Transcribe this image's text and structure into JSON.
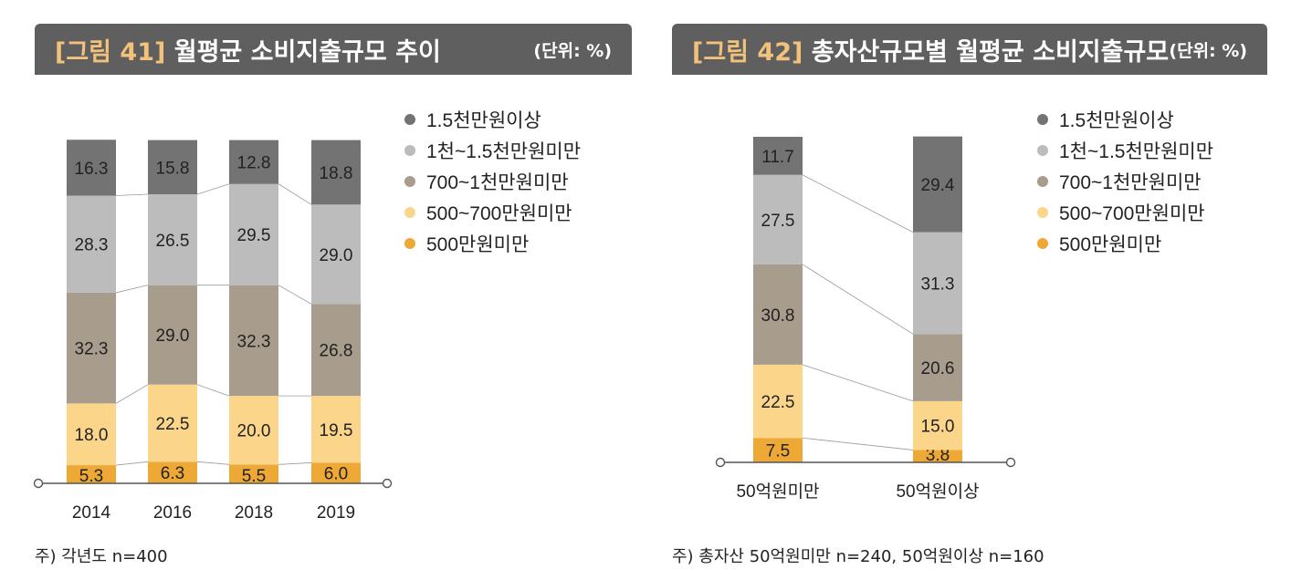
{
  "figure1": {
    "tag": "[그림 41]",
    "title": "월평균 소비지출규모 추이",
    "unit": "(단위: %)",
    "note": "주) 각년도 n=400"
  },
  "figure2": {
    "tag": "[그림 42]",
    "title": "총자산규모별 월평균 소비지출규모",
    "unit": "(단위: %)",
    "note": "주) 총자산 50억원미만 n=240, 50억원이상 n=160"
  },
  "chart_data": [
    {
      "type": "bar",
      "stacked": true,
      "title": "월평균 소비지출규모 추이",
      "categories": [
        "2014",
        "2016",
        "2018",
        "2019"
      ],
      "series": [
        {
          "name": "500만원미만",
          "color": "#eda836",
          "values": [
            5.3,
            6.3,
            5.5,
            6.0
          ]
        },
        {
          "name": "500~700만원미만",
          "color": "#fbd68a",
          "values": [
            18.0,
            22.5,
            20.0,
            19.5
          ]
        },
        {
          "name": "700~1천만원미만",
          "color": "#a89c8d",
          "values": [
            32.3,
            29.0,
            32.3,
            26.8
          ]
        },
        {
          "name": "1천~1.5천만원미만",
          "color": "#bcbcbc",
          "values": [
            28.3,
            26.5,
            29.5,
            29.0
          ]
        },
        {
          "name": "1.5천만원이상",
          "color": "#737373",
          "values": [
            16.3,
            15.8,
            12.8,
            18.8
          ]
        }
      ],
      "legend": [
        "1.5천만원이상",
        "1천~1.5천만원미만",
        "700~1천만원미만",
        "500~700만원미만",
        "500만원미만"
      ],
      "ylim": [
        0,
        100
      ]
    },
    {
      "type": "bar",
      "stacked": true,
      "title": "총자산규모별 월평균 소비지출규모",
      "categories": [
        "50억원미만",
        "50억원이상"
      ],
      "series": [
        {
          "name": "500만원미만",
          "color": "#eda836",
          "values": [
            7.5,
            3.8
          ]
        },
        {
          "name": "500~700만원미만",
          "color": "#fbd68a",
          "values": [
            22.5,
            15.0
          ]
        },
        {
          "name": "700~1천만원미만",
          "color": "#a89c8d",
          "values": [
            30.8,
            20.6
          ]
        },
        {
          "name": "1천~1.5천만원미만",
          "color": "#bcbcbc",
          "values": [
            27.5,
            31.3
          ]
        },
        {
          "name": "1.5천만원이상",
          "color": "#737373",
          "values": [
            11.7,
            29.4
          ]
        }
      ],
      "legend": [
        "1.5천만원이상",
        "1천~1.5천만원미만",
        "700~1천만원미만",
        "500~700만원미만",
        "500만원미만"
      ],
      "ylim": [
        0,
        100
      ]
    }
  ]
}
